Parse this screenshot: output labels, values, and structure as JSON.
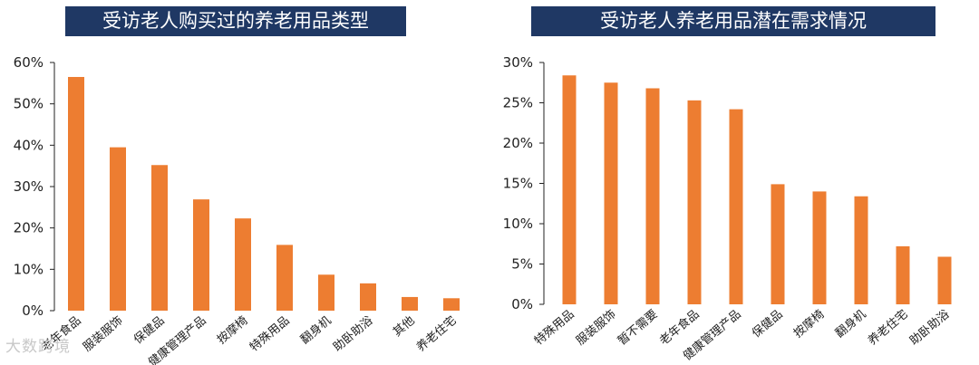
{
  "watermark": "大数跨境",
  "chart_data": [
    {
      "type": "bar",
      "title": "受访老人购买过的养老用品类型",
      "categories": [
        "老年食品",
        "服装服饰",
        "保健品",
        "健康管理产品",
        "按摩椅",
        "特殊用品",
        "翻身机",
        "助卧助浴",
        "其他",
        "养老住宅"
      ],
      "values": [
        56.5,
        39.5,
        35.2,
        26.9,
        22.3,
        15.9,
        8.7,
        6.6,
        3.3,
        3.0
      ],
      "y_ticks": [
        "0%",
        "10%",
        "20%",
        "30%",
        "40%",
        "50%",
        "60%"
      ],
      "ylim": [
        0,
        60
      ],
      "bar_color": "#ed7d31",
      "xlabel": "",
      "ylabel": ""
    },
    {
      "type": "bar",
      "title": "受访老人养老用品潜在需求情况",
      "categories": [
        "特殊用品",
        "服装服饰",
        "暂不需要",
        "老年食品",
        "健康管理产品",
        "保健品",
        "按摩椅",
        "翻身机",
        "养老住宅",
        "助卧助浴"
      ],
      "values": [
        28.4,
        27.5,
        26.8,
        25.3,
        24.2,
        14.9,
        14.0,
        13.4,
        7.2,
        5.9
      ],
      "y_ticks": [
        "0%",
        "5%",
        "10%",
        "15%",
        "20%",
        "25%",
        "30%"
      ],
      "ylim": [
        0,
        30
      ],
      "bar_color": "#ed7d31",
      "xlabel": "",
      "ylabel": ""
    }
  ]
}
